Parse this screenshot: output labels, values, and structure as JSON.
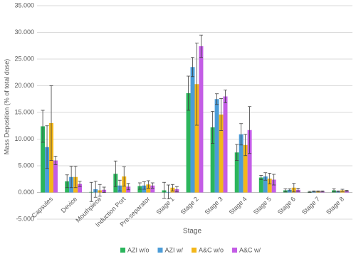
{
  "chart_data": {
    "type": "bar",
    "y_label": "Mass Deposition (% of total dose)",
    "x_label": "Stage",
    "categories": [
      "Capsules",
      "Device",
      "Mouthpiece",
      "Induction Port",
      "Pre-separator",
      "Stage 1",
      "Stage 2",
      "Stage 3",
      "Stage 4",
      "Stage 5",
      "Stage 6",
      "Stage 7",
      "Stage 8"
    ],
    "series": [
      {
        "name": "AZI w/o",
        "color": "#2bb55c",
        "values": [
          12.4,
          2.1,
          0.1,
          3.5,
          1.2,
          0.4,
          18.6,
          12.2,
          7.5,
          2.8,
          0.4,
          0.1,
          0.4
        ],
        "errors": [
          3.0,
          1.2,
          1.8,
          2.4,
          0.6,
          1.5,
          3.2,
          3.0,
          1.5,
          0.4,
          0.3,
          0.1,
          0.3
        ]
      },
      {
        "name": "AZI w/",
        "color": "#4b9cd8",
        "values": [
          8.5,
          2.9,
          0.6,
          1.3,
          1.3,
          0.1,
          23.5,
          17.5,
          10.9,
          3.0,
          0.5,
          0.2,
          0.2
        ],
        "errors": [
          4.0,
          2.0,
          1.5,
          1.0,
          0.7,
          1.3,
          1.8,
          1.0,
          2.0,
          0.7,
          0.2,
          0.1,
          0.1
        ]
      },
      {
        "name": "A&C w/o",
        "color": "#f3b71a",
        "values": [
          13.0,
          2.9,
          0.4,
          3.0,
          1.5,
          0.9,
          20.3,
          14.6,
          8.9,
          2.6,
          0.9,
          0.2,
          0.4
        ],
        "errors": [
          7.0,
          2.0,
          1.1,
          1.8,
          0.7,
          0.6,
          7.7,
          3.0,
          2.0,
          1.0,
          0.8,
          0.1,
          0.2
        ]
      },
      {
        "name": "A&C w/",
        "color": "#c35ce6",
        "values": [
          6.0,
          1.6,
          0.5,
          1.1,
          1.3,
          0.6,
          27.4,
          18.0,
          11.7,
          2.4,
          0.5,
          0.2,
          0.3
        ],
        "errors": [
          0.8,
          0.5,
          0.5,
          0.6,
          0.5,
          0.5,
          2.1,
          1.2,
          4.4,
          1.0,
          0.3,
          0.1,
          0.1
        ]
      }
    ],
    "ylim": [
      -5,
      35
    ],
    "yticks": [
      {
        "value": -5,
        "label": "-5.000"
      },
      {
        "value": 0,
        "label": "0.000"
      },
      {
        "value": 5,
        "label": "5.000"
      },
      {
        "value": 10,
        "label": "10.000"
      },
      {
        "value": 15,
        "label": "15.000"
      },
      {
        "value": 20,
        "label": "20.000"
      },
      {
        "value": 25,
        "label": "25.000"
      },
      {
        "value": 30,
        "label": "30.000"
      },
      {
        "value": 35,
        "label": "35.000"
      }
    ],
    "grid": true,
    "legend": "bottom"
  }
}
